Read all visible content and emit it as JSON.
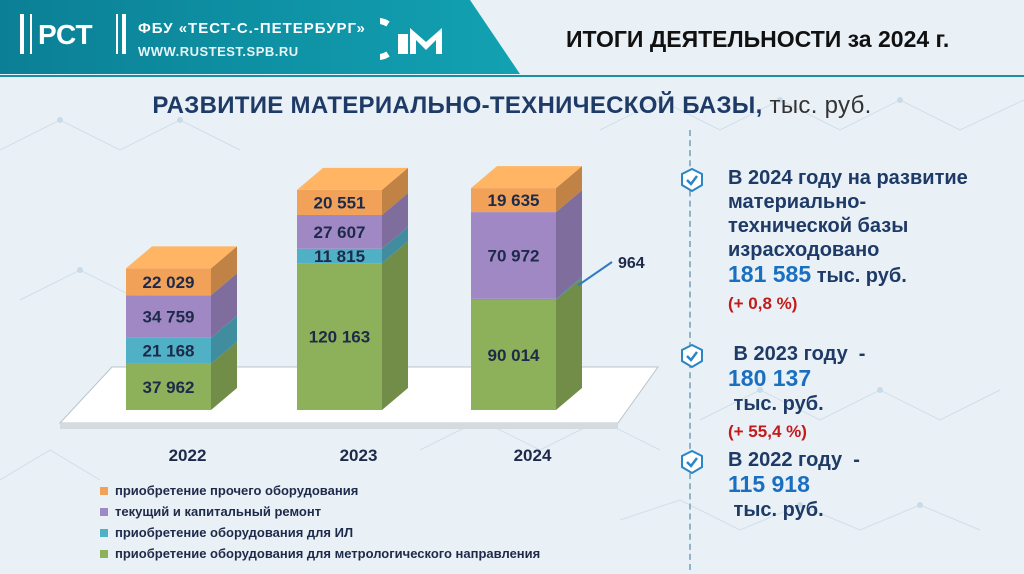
{
  "header": {
    "logo_text": "РСТ",
    "org_name": "ФБУ «ТЕСТ-С.-ПЕТЕРБУРГ»",
    "org_site": "WWW.RUSTEST.SPB.RU",
    "title": "ИТОГИ ДЕЯТЕЛЬНОСТИ за 2024 г."
  },
  "section": {
    "title": "РАЗВИТИЕ МАТЕРИАЛЬНО-ТЕХНИЧЕСКОЙ БАЗЫ,",
    "unit": " тыс. руб."
  },
  "chart_data": {
    "type": "bar",
    "stacked": true,
    "categories": [
      "2022",
      "2023",
      "2024"
    ],
    "series": [
      {
        "name": "приобретение оборудования для метрологического направления",
        "color": "#8db05a",
        "values": [
          37962,
          120163,
          90014
        ],
        "labels": [
          "37 962",
          "120 163",
          "90 014"
        ]
      },
      {
        "name": "приобретение оборудования для ИЛ",
        "color": "#4fb0c6",
        "values": [
          21168,
          11815,
          964
        ],
        "labels": [
          "21 168",
          "11 815",
          "964"
        ]
      },
      {
        "name": "текущий и капитальный ремонт",
        "color": "#9f88c4",
        "values": [
          34759,
          27607,
          70972
        ],
        "labels": [
          "34 759",
          "27 607",
          "70 972"
        ]
      },
      {
        "name": "приобретение прочего оборудования",
        "color": "#f1a258",
        "values": [
          22029,
          20551,
          19635
        ],
        "labels": [
          "22 029",
          "20 551",
          "19 635"
        ]
      }
    ],
    "legend_order": [
      3,
      2,
      1,
      0
    ]
  },
  "info": {
    "blocks": [
      {
        "lines": [
          "В 2024 году на развитие",
          "материально-",
          "технической базы",
          "израсходовано"
        ],
        "amount": "181 585",
        "amount_unit": " тыс. руб.",
        "growth": "(+ 0,8 %)"
      },
      {
        "lines": [
          " В 2023 году  -"
        ],
        "amount": "180 137",
        "amount_unit": " тыс. руб.",
        "growth": "(+ 55,4 %)"
      },
      {
        "lines": [
          "В 2022 году  -"
        ],
        "amount": "115 918",
        "amount_unit": " тыс. руб.",
        "growth": ""
      }
    ]
  }
}
